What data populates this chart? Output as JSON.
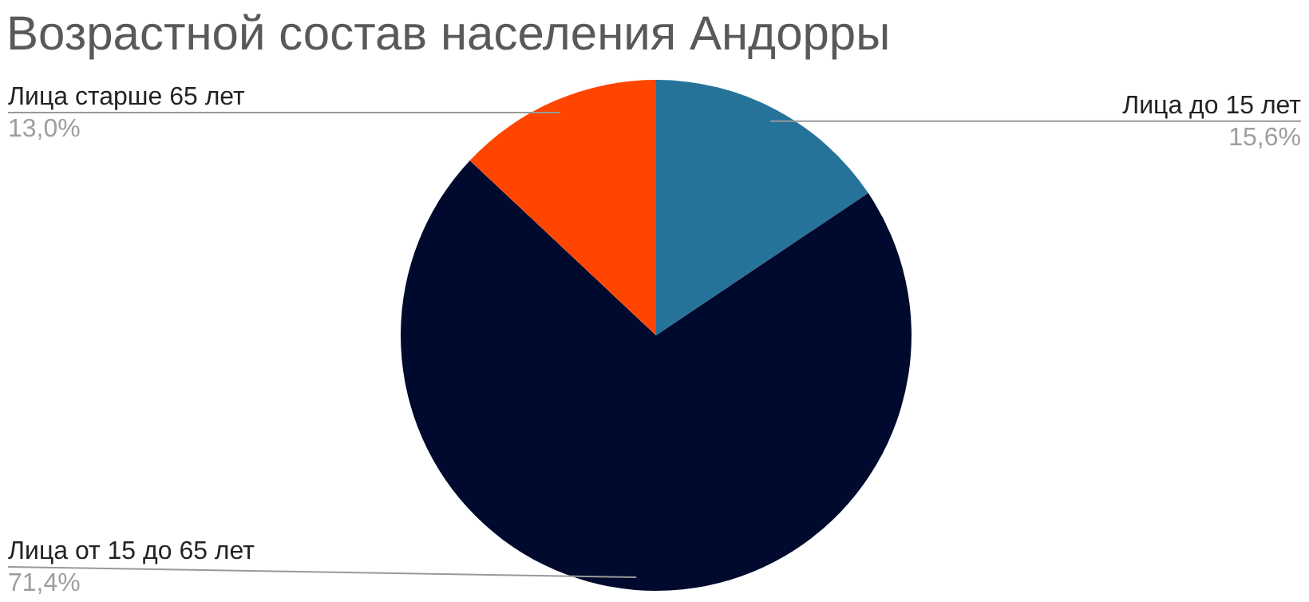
{
  "chart_data": {
    "type": "pie",
    "title": "Возрастной состав населения Андорры",
    "categories": [
      "Лица до 15 лет",
      "Лица от 15 до 65 лет",
      "Лица старше 65 лет"
    ],
    "values": [
      15.6,
      71.4,
      13.0
    ],
    "colors": [
      "#26739a",
      "#000a2e",
      "#ff4500"
    ],
    "value_labels": [
      "15,6%",
      "71,4%",
      "13,0%"
    ]
  }
}
